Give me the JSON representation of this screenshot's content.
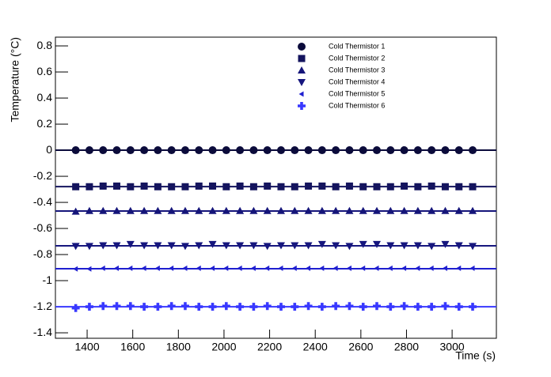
{
  "chart_data": {
    "type": "scatter",
    "x_label": "Time (s)",
    "y_label": "Temperature (°C)",
    "xlim": [
      1261,
      3194
    ],
    "ylim": [
      -1.442,
      0.867
    ],
    "xticks": [
      1400,
      1600,
      1800,
      2000,
      2200,
      2400,
      2600,
      2800,
      3000
    ],
    "yticks": [
      0.8,
      0.6,
      0.4,
      0.2,
      0,
      -0.2,
      -0.4,
      -0.6,
      -0.8,
      -1,
      -1.2,
      -1.4
    ],
    "x": [
      1350,
      1410,
      1470,
      1530,
      1590,
      1650,
      1710,
      1770,
      1830,
      1890,
      1950,
      2010,
      2070,
      2130,
      2190,
      2250,
      2310,
      2370,
      2430,
      2490,
      2550,
      2610,
      2670,
      2730,
      2790,
      2850,
      2910,
      2970,
      3030,
      3090
    ],
    "series": [
      {
        "name": "Cold Thermistor 1",
        "marker": "circle",
        "color": "#0b0b3b",
        "fit": 0,
        "values": [
          0,
          0,
          0,
          0,
          0,
          0,
          0,
          0,
          0,
          0,
          0,
          0,
          0,
          0,
          0,
          0,
          0,
          0,
          0,
          0,
          0,
          0,
          0,
          0,
          0,
          0,
          0,
          0,
          0,
          0
        ]
      },
      {
        "name": "Cold Thermistor 2",
        "marker": "square",
        "color": "#14145e",
        "fit": -0.279,
        "values": [
          -0.28,
          -0.28,
          -0.275,
          -0.275,
          -0.28,
          -0.275,
          -0.28,
          -0.28,
          -0.28,
          -0.275,
          -0.275,
          -0.28,
          -0.275,
          -0.28,
          -0.275,
          -0.28,
          -0.28,
          -0.275,
          -0.275,
          -0.28,
          -0.275,
          -0.28,
          -0.28,
          -0.28,
          -0.275,
          -0.28,
          -0.275,
          -0.28,
          -0.28,
          -0.28
        ]
      },
      {
        "name": "Cold Thermistor 3",
        "marker": "triangle-up",
        "color": "#15157a",
        "fit": -0.466,
        "values": [
          -0.47,
          -0.465,
          -0.465,
          -0.465,
          -0.465,
          -0.465,
          -0.465,
          -0.465,
          -0.465,
          -0.465,
          -0.465,
          -0.465,
          -0.465,
          -0.465,
          -0.465,
          -0.465,
          -0.465,
          -0.465,
          -0.465,
          -0.465,
          -0.465,
          -0.465,
          -0.465,
          -0.465,
          -0.465,
          -0.465,
          -0.465,
          -0.465,
          -0.465,
          -0.465
        ]
      },
      {
        "name": "Cold Thermistor 4",
        "marker": "triangle-down",
        "color": "#16167e",
        "fit": -0.733,
        "values": [
          -0.735,
          -0.735,
          -0.73,
          -0.73,
          -0.72,
          -0.73,
          -0.73,
          -0.73,
          -0.735,
          -0.73,
          -0.72,
          -0.73,
          -0.73,
          -0.73,
          -0.735,
          -0.73,
          -0.73,
          -0.73,
          -0.72,
          -0.73,
          -0.735,
          -0.72,
          -0.72,
          -0.73,
          -0.73,
          -0.73,
          -0.735,
          -0.72,
          -0.73,
          -0.735
        ]
      },
      {
        "name": "Cold Thermistor 5",
        "marker": "triangle-left",
        "color": "#1f1fd0",
        "fit": -0.909,
        "values": [
          -0.91,
          -0.91,
          -0.905,
          -0.905,
          -0.905,
          -0.905,
          -0.905,
          -0.905,
          -0.905,
          -0.905,
          -0.905,
          -0.905,
          -0.905,
          -0.905,
          -0.905,
          -0.905,
          -0.905,
          -0.905,
          -0.905,
          -0.905,
          -0.905,
          -0.905,
          -0.905,
          -0.905,
          -0.905,
          -0.905,
          -0.905,
          -0.905,
          -0.905,
          -0.905
        ]
      },
      {
        "name": "Cold Thermistor 6",
        "marker": "cross",
        "color": "#3838ff",
        "fit": -1.2,
        "values": [
          -1.21,
          -1.2,
          -1.195,
          -1.195,
          -1.195,
          -1.2,
          -1.2,
          -1.195,
          -1.195,
          -1.2,
          -1.2,
          -1.195,
          -1.2,
          -1.2,
          -1.195,
          -1.2,
          -1.2,
          -1.195,
          -1.2,
          -1.195,
          -1.195,
          -1.2,
          -1.195,
          -1.2,
          -1.195,
          -1.2,
          -1.2,
          -1.195,
          -1.2,
          -1.2
        ]
      }
    ]
  }
}
